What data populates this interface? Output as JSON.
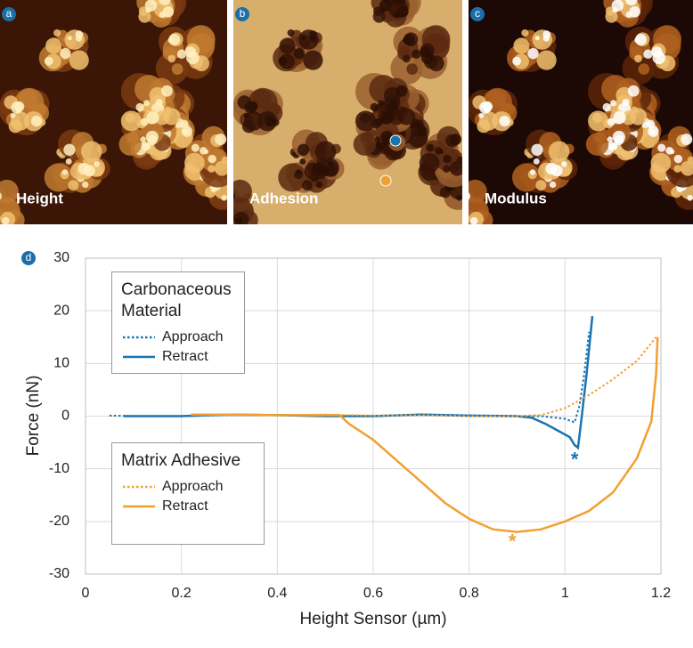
{
  "panels": [
    {
      "letter": "a",
      "label": "Height"
    },
    {
      "letter": "b",
      "label": "Adhesion"
    },
    {
      "letter": "c",
      "label": "Modulus"
    }
  ],
  "chart_data": {
    "type": "line",
    "panel_letter": "d",
    "x_label": "Height Sensor (µm)",
    "y_label": "Force (nN)",
    "xlim": [
      0,
      1.2
    ],
    "xticks": [
      0,
      0.2,
      0.4,
      0.6,
      0.8,
      1,
      1.2
    ],
    "ylim": [
      -30,
      30
    ],
    "yticks": [
      -30,
      -20,
      -10,
      0,
      10,
      20,
      30
    ],
    "grid": true,
    "groups": [
      {
        "name": "Carbonaceous Material",
        "series": [
          {
            "name": "Approach",
            "color": "#1a74b0",
            "line_style": "dotted",
            "x": [
              0.05,
              0.1,
              0.2,
              0.3,
              0.4,
              0.5,
              0.6,
              0.7,
              0.8,
              0.9,
              0.95,
              0.98,
              1.0,
              1.02,
              1.03,
              1.04,
              1.05
            ],
            "values": [
              0.1,
              0,
              0,
              0.2,
              0.2,
              0,
              0,
              0.3,
              0,
              0,
              0,
              -0.3,
              -0.5,
              -1.2,
              2,
              8,
              16
            ]
          },
          {
            "name": "Retract",
            "color": "#1a74b0",
            "line_style": "solid",
            "x": [
              0.08,
              0.2,
              0.3,
              0.4,
              0.5,
              0.6,
              0.7,
              0.8,
              0.9,
              0.93,
              0.96,
              0.99,
              1.01,
              1.02,
              1.027,
              1.035,
              1.045,
              1.057
            ],
            "values": [
              0,
              0,
              0.3,
              0.2,
              0,
              0,
              0.3,
              0.1,
              0,
              -0.3,
              -1.5,
              -3,
              -4,
              -5.5,
              -6,
              0,
              8,
              19
            ]
          }
        ]
      },
      {
        "name": "Matrix Adhesive",
        "series": [
          {
            "name": "Approach",
            "color": "#f0a030",
            "line_style": "dotted",
            "x": [
              0.22,
              0.3,
              0.4,
              0.5,
              0.6,
              0.7,
              0.8,
              0.9,
              0.95,
              1.0,
              1.05,
              1.1,
              1.15,
              1.19
            ],
            "values": [
              0.3,
              0.3,
              0.2,
              0.3,
              0.1,
              0.2,
              0,
              0,
              0.2,
              1.5,
              4,
              7,
              10.5,
              15
            ]
          },
          {
            "name": "Retract",
            "color": "#f0a030",
            "line_style": "solid",
            "x": [
              0.22,
              0.3,
              0.4,
              0.53,
              0.55,
              0.6,
              0.65,
              0.7,
              0.75,
              0.8,
              0.85,
              0.9,
              0.95,
              1.0,
              1.05,
              1.1,
              1.15,
              1.18,
              1.19,
              1.193
            ],
            "values": [
              0.3,
              0.3,
              0.2,
              0.2,
              -1.5,
              -4.5,
              -8.5,
              -12.5,
              -16.5,
              -19.5,
              -21.5,
              -22,
              -21.5,
              -20,
              -18,
              -14.5,
              -8,
              -1,
              8,
              15
            ]
          }
        ]
      }
    ],
    "annotations": [
      {
        "text": "*",
        "x": 1.02,
        "y": -8.5,
        "color": "#1a74b0"
      },
      {
        "text": "*",
        "x": 0.89,
        "y": -24,
        "color": "#f0a030"
      }
    ]
  }
}
